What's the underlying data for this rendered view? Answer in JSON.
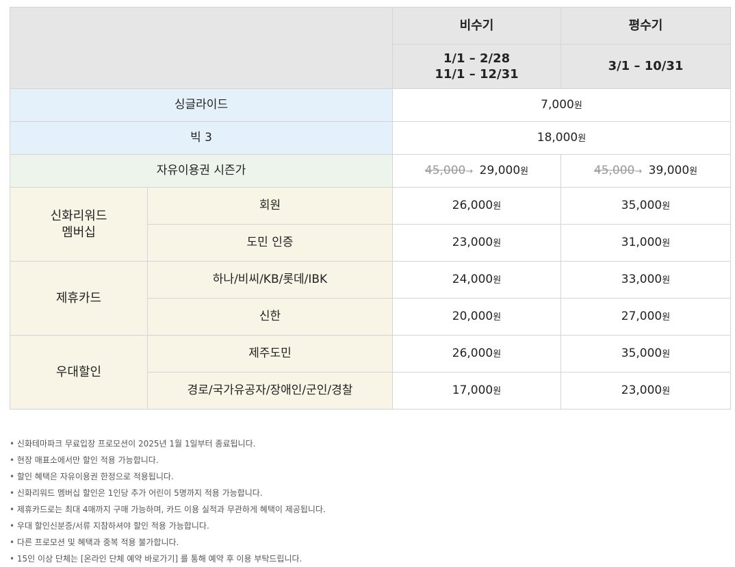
{
  "header": {
    "season_off": "비수기",
    "season_mid": "평수기",
    "off_dates_line1": "1/1 – 2/28",
    "off_dates_line2": "11/1 – 12/31",
    "mid_dates": "3/1 – 10/31"
  },
  "currency_unit": "원",
  "rows": {
    "single_ride": {
      "label": "싱글라이드",
      "price": "7,000"
    },
    "big3": {
      "label": "빅 3",
      "price": "18,000"
    },
    "season_pass": {
      "label": "자유이용권 시즌가",
      "off_original": "45,000",
      "off_price": "29,000",
      "mid_original": "45,000",
      "mid_price": "39,000",
      "arrow": "→"
    },
    "shinhwa": {
      "category": "신화리워드 멤버십",
      "category_line1": "신화리워드",
      "category_line2": "멤버십",
      "items": [
        {
          "label": "회원",
          "off": "26,000",
          "mid": "35,000"
        },
        {
          "label": "도민 인증",
          "off": "23,000",
          "mid": "31,000"
        }
      ]
    },
    "card": {
      "category": "제휴카드",
      "items": [
        {
          "label": "하나/비씨/KB/롯데/IBK",
          "off": "24,000",
          "mid": "33,000"
        },
        {
          "label": "신한",
          "off": "20,000",
          "mid": "27,000"
        }
      ]
    },
    "discount": {
      "category": "우대할인",
      "items": [
        {
          "label": "제주도민",
          "off": "26,000",
          "mid": "35,000"
        },
        {
          "label": "경로/국가유공자/장애인/군인/경찰",
          "off": "17,000",
          "mid": "23,000"
        }
      ]
    }
  },
  "notes": [
    "신화테마파크 무료입장 프로모션이 2025년 1월 1일부터 종료됩니다.",
    "현장 매표소에서만 할인 적용 가능합니다.",
    "할인 혜택은 자유이용권 한정으로 적용됩니다.",
    "신화리워드 멤버십 할인은 1인당 추가 어린이 5명까지 적용 가능합니다.",
    "제휴카드로는 최대 4매까지 구매 가능하며, 카드 이용 실적과 무관하게 혜택이 제공됩니다.",
    "우대 할인신분증/서류 지참하셔야 할인 적용 가능합니다.",
    "다른 프로모션 및 혜택과 중복 적용 불가합니다.",
    "15인 이상 단체는 [온라인 단체 예약 바로가기] 를 통해 예약 후 이용 부탁드립니다."
  ]
}
